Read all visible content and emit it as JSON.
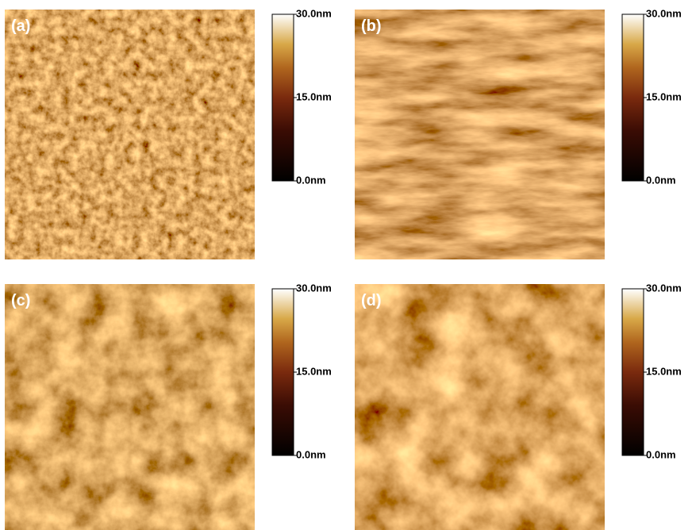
{
  "panels": [
    {
      "label": "(a)",
      "scale": {
        "max": "30.0nm",
        "mid": "15.0nm",
        "min": "0.0nm"
      }
    },
    {
      "label": "(b)",
      "scale": {
        "max": "30.0nm",
        "mid": "15.0nm",
        "min": "0.0nm"
      }
    },
    {
      "label": "(c)",
      "scale": {
        "max": "30.0nm",
        "mid": "15.0nm",
        "min": "0.0nm"
      }
    },
    {
      "label": "(d)",
      "scale": {
        "max": "30.0nm",
        "mid": "15.0nm",
        "min": "0.0nm"
      }
    }
  ]
}
